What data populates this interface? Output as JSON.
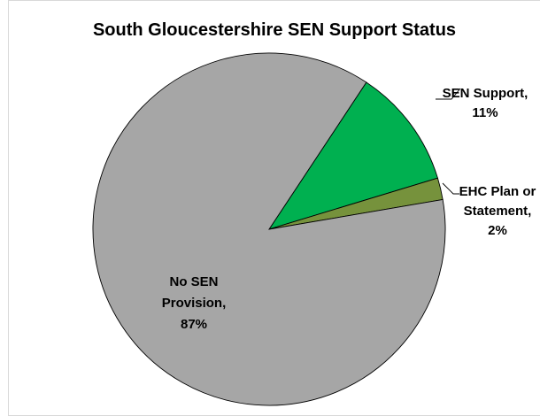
{
  "chart_data": {
    "type": "pie",
    "title": "South Gloucestershire SEN Support Status",
    "slices": [
      {
        "label_lines": [
          "SEN Support,",
          "11%"
        ],
        "value": 11,
        "color": "#00b050"
      },
      {
        "label_lines": [
          "EHC Plan or",
          "Statement,",
          "2%"
        ],
        "value": 2,
        "color": "#76923c"
      },
      {
        "label_lines": [
          "No SEN",
          "Provision,",
          "87%"
        ],
        "value": 87,
        "color": "#a6a6a6"
      }
    ],
    "legend": "none"
  }
}
